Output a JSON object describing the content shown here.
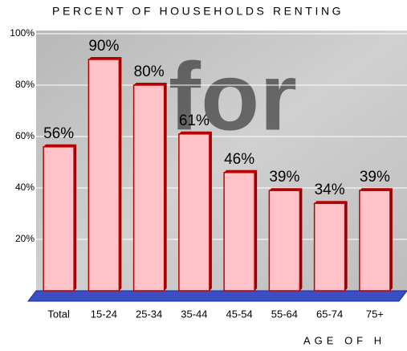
{
  "chart_data": {
    "type": "bar",
    "title": "PERCENT OF HOUSEHOLDS RENTING",
    "x_label": "AGE OF H",
    "categories": [
      "Total",
      "15-24",
      "25-34",
      "35-44",
      "45-54",
      "55-64",
      "65-74",
      "75+"
    ],
    "values": [
      56,
      90,
      80,
      61,
      46,
      39,
      34,
      39
    ],
    "value_labels": [
      "56%",
      "90%",
      "80%",
      "61%",
      "46%",
      "39%",
      "34%",
      "39%"
    ],
    "color": "#ffc2c8",
    "ylim": [
      0,
      100
    ],
    "yticks": [
      {
        "value": 20,
        "label": "20%"
      },
      {
        "value": 40,
        "label": "40%"
      },
      {
        "value": 60,
        "label": "60%"
      },
      {
        "value": 80,
        "label": "80%"
      },
      {
        "value": 100,
        "label": "100%"
      }
    ],
    "grid": true
  }
}
